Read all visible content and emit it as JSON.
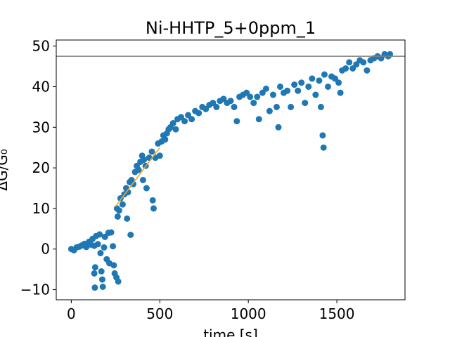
{
  "chart_data": {
    "type": "scatter",
    "title": "Ni-HHTP_5+0ppm_1",
    "xlabel": "time [s]",
    "ylabel": "ΔG/G₀",
    "xlim": [
      -85,
      1885
    ],
    "ylim": [
      -12.5,
      51.5
    ],
    "xticks": [
      0,
      500,
      1000,
      1500
    ],
    "yticks": [
      -10,
      0,
      10,
      20,
      30,
      40,
      50
    ],
    "xtick_labels": [
      "0",
      "500",
      "1000",
      "1500"
    ],
    "ytick_labels": [
      "−10",
      "0",
      "10",
      "20",
      "30",
      "40",
      "50"
    ],
    "grid": false,
    "legend": "none",
    "reference_line": {
      "y": 47.5,
      "color": "#808080"
    },
    "fit_line": {
      "x": [
        250,
        500
      ],
      "y": [
        10.5,
        25.0
      ],
      "color": "#f5a623"
    },
    "marker_color": "#1f77b4",
    "points": [
      [
        0,
        0
      ],
      [
        15,
        -0.3
      ],
      [
        30,
        0.4
      ],
      [
        45,
        0.6
      ],
      [
        60,
        0.9
      ],
      [
        75,
        1.3
      ],
      [
        85,
        0.5
      ],
      [
        100,
        1.8
      ],
      [
        110,
        1.1
      ],
      [
        120,
        2.5
      ],
      [
        130,
        0.8
      ],
      [
        135,
        -4.5
      ],
      [
        130,
        -6
      ],
      [
        133,
        -9.5
      ],
      [
        140,
        3.2
      ],
      [
        150,
        1.2
      ],
      [
        160,
        3.6
      ],
      [
        165,
        -1.0
      ],
      [
        170,
        -5.5
      ],
      [
        175,
        -7.5
      ],
      [
        178,
        -9.3
      ],
      [
        185,
        0.4
      ],
      [
        190,
        3.0
      ],
      [
        200,
        -2.5
      ],
      [
        210,
        4.0
      ],
      [
        215,
        -3.5
      ],
      [
        225,
        4.1
      ],
      [
        235,
        0.7
      ],
      [
        240,
        -4.0
      ],
      [
        245,
        -6.0
      ],
      [
        255,
        -7.0
      ],
      [
        265,
        -8.0
      ],
      [
        258,
        10.0
      ],
      [
        262,
        8.0
      ],
      [
        270,
        9.5
      ],
      [
        278,
        12.5
      ],
      [
        290,
        11.0
      ],
      [
        300,
        13.5
      ],
      [
        310,
        15.0
      ],
      [
        315,
        7.5
      ],
      [
        320,
        14.0
      ],
      [
        330,
        16.5
      ],
      [
        335,
        3.5
      ],
      [
        340,
        17.0
      ],
      [
        350,
        16.0
      ],
      [
        360,
        19.0
      ],
      [
        370,
        20.5
      ],
      [
        380,
        19.5
      ],
      [
        390,
        21.5
      ],
      [
        400,
        23.0
      ],
      [
        405,
        17.0
      ],
      [
        410,
        22.0
      ],
      [
        420,
        20.5
      ],
      [
        425,
        15.0
      ],
      [
        440,
        22.5
      ],
      [
        455,
        24.0
      ],
      [
        460,
        12.0
      ],
      [
        465,
        10.0
      ],
      [
        475,
        22.5
      ],
      [
        490,
        26.0
      ],
      [
        500,
        23.0
      ],
      [
        510,
        26.5
      ],
      [
        520,
        28.0
      ],
      [
        530,
        27.0
      ],
      [
        540,
        28.5
      ],
      [
        550,
        29.5
      ],
      [
        560,
        30.0
      ],
      [
        575,
        31.0
      ],
      [
        590,
        29.5
      ],
      [
        600,
        32.0
      ],
      [
        620,
        32.5
      ],
      [
        640,
        31.5
      ],
      [
        660,
        33.0
      ],
      [
        680,
        32.0
      ],
      [
        700,
        34.0
      ],
      [
        720,
        33.5
      ],
      [
        740,
        35.0
      ],
      [
        760,
        34.5
      ],
      [
        780,
        35.5
      ],
      [
        800,
        36.0
      ],
      [
        820,
        35.0
      ],
      [
        840,
        36.5
      ],
      [
        860,
        37.0
      ],
      [
        880,
        36.0
      ],
      [
        900,
        36.5
      ],
      [
        920,
        35.0
      ],
      [
        935,
        31.5
      ],
      [
        950,
        37.5
      ],
      [
        970,
        38.0
      ],
      [
        990,
        38.5
      ],
      [
        1010,
        37.5
      ],
      [
        1030,
        36.0
      ],
      [
        1050,
        37.5
      ],
      [
        1060,
        32.0
      ],
      [
        1080,
        38.5
      ],
      [
        1100,
        39.5
      ],
      [
        1120,
        34.0
      ],
      [
        1140,
        38.0
      ],
      [
        1160,
        35.0
      ],
      [
        1170,
        30.0
      ],
      [
        1180,
        40.0
      ],
      [
        1200,
        38.5
      ],
      [
        1220,
        39.0
      ],
      [
        1240,
        35.0
      ],
      [
        1260,
        40.5
      ],
      [
        1280,
        39.0
      ],
      [
        1300,
        41.0
      ],
      [
        1320,
        36.0
      ],
      [
        1340,
        40.0
      ],
      [
        1360,
        42.0
      ],
      [
        1380,
        38.0
      ],
      [
        1400,
        41.5
      ],
      [
        1410,
        35.0
      ],
      [
        1420,
        28.0
      ],
      [
        1425,
        25.0
      ],
      [
        1430,
        43.0
      ],
      [
        1450,
        40.0
      ],
      [
        1470,
        42.5
      ],
      [
        1490,
        42.0
      ],
      [
        1510,
        41.0
      ],
      [
        1520,
        38.5
      ],
      [
        1530,
        44.0
      ],
      [
        1550,
        44.5
      ],
      [
        1570,
        46.0
      ],
      [
        1590,
        44.5
      ],
      [
        1610,
        45.5
      ],
      [
        1630,
        46.5
      ],
      [
        1650,
        46.0
      ],
      [
        1670,
        44.0
      ],
      [
        1690,
        46.5
      ],
      [
        1710,
        47.0
      ],
      [
        1730,
        47.5
      ],
      [
        1750,
        47.0
      ],
      [
        1770,
        48.0
      ],
      [
        1790,
        47.5
      ],
      [
        1800,
        48.0
      ]
    ]
  }
}
